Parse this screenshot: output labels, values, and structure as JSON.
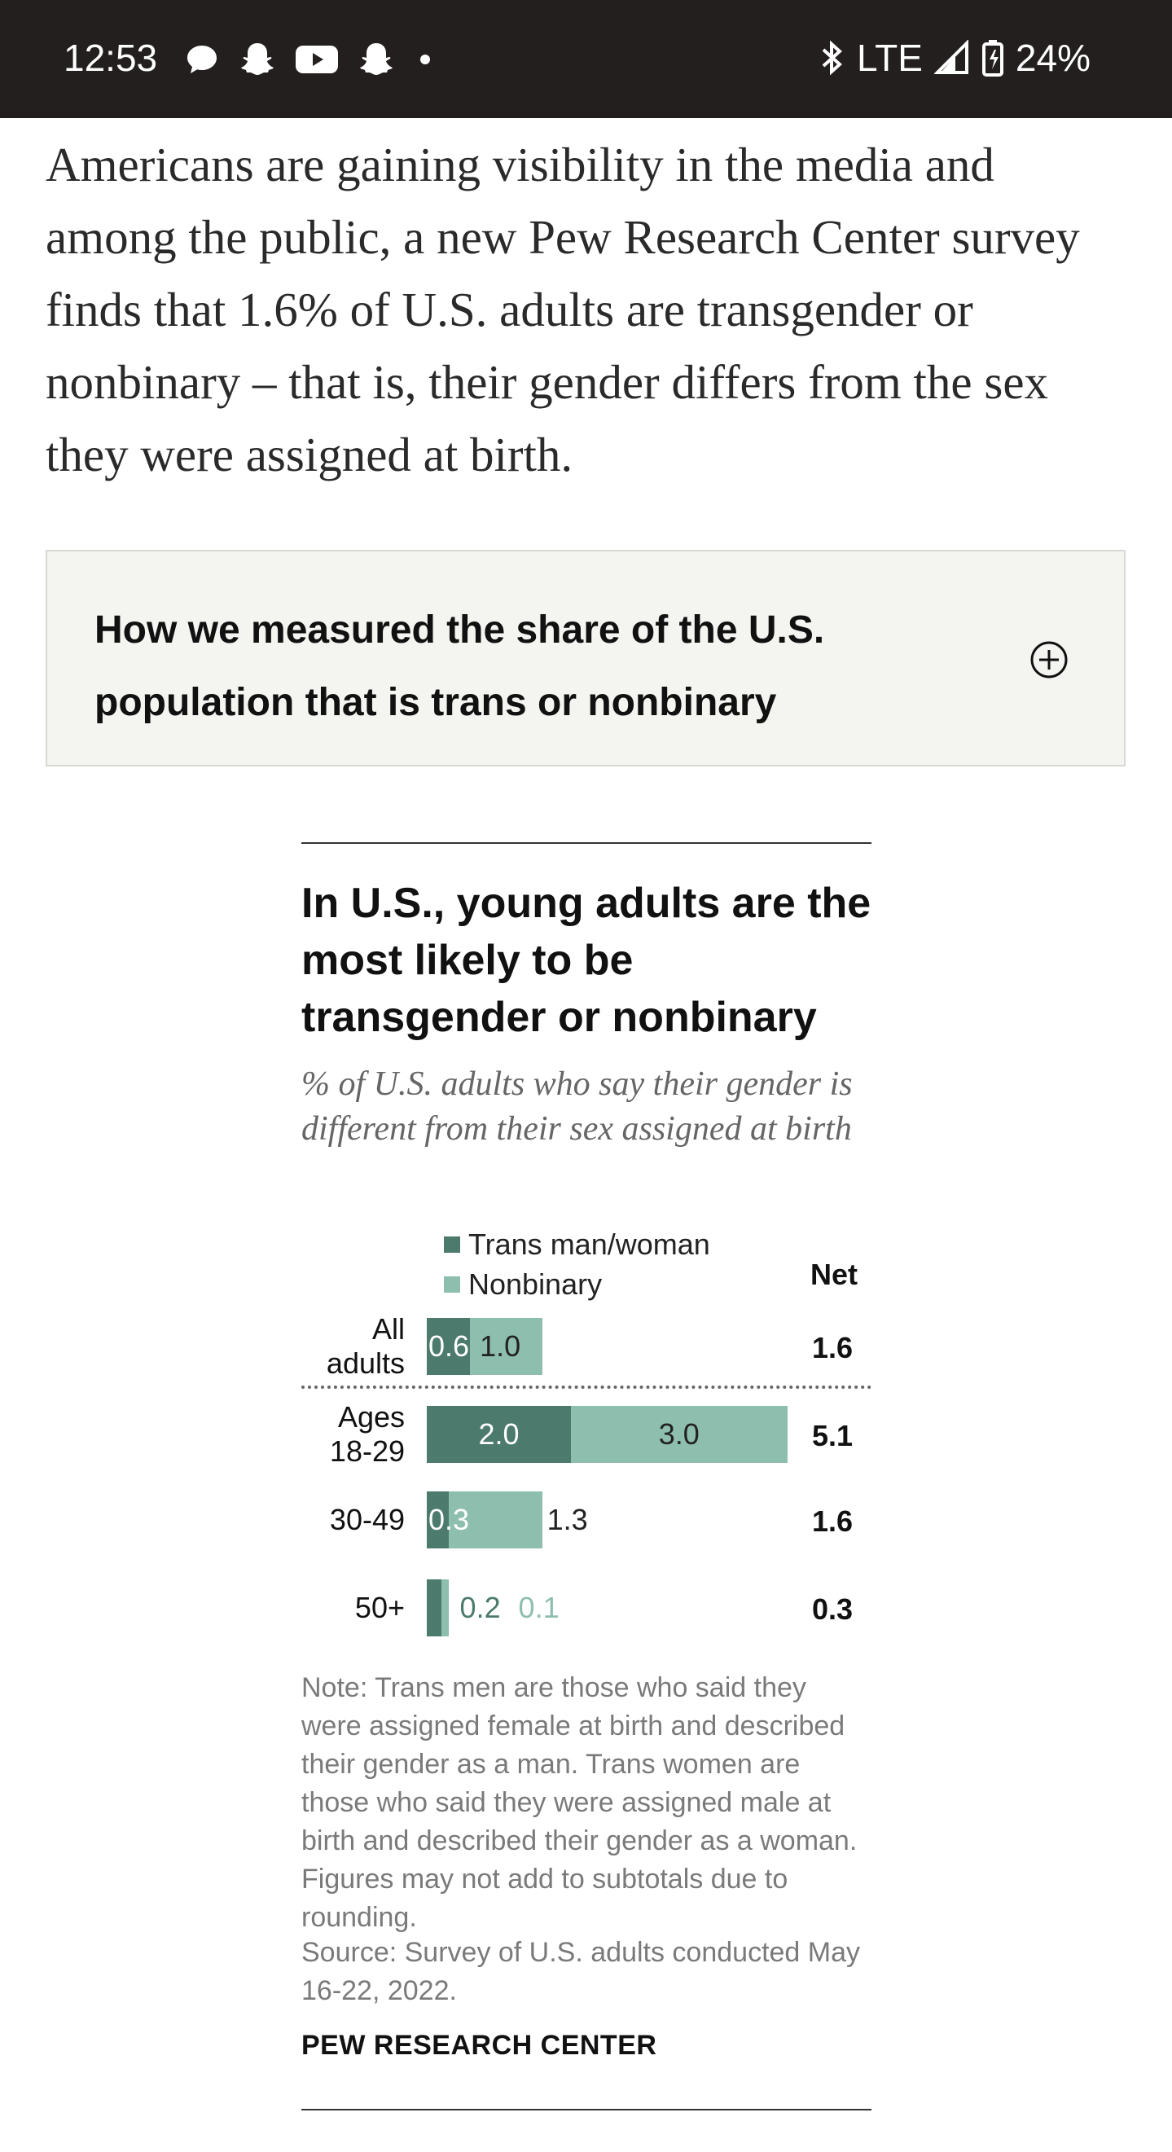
{
  "status_bar": {
    "time": "12:53",
    "network": "LTE",
    "battery": "24%",
    "icons": [
      "chat-bubble-icon",
      "snapchat-icon",
      "youtube-icon",
      "snapchat-icon",
      "dot-icon",
      "bluetooth-icon",
      "signal-icon",
      "battery-icon"
    ]
  },
  "article": {
    "paragraph": "Americans are gaining visibility in the media and among the public, a new Pew Research Center survey finds that 1.6% of U.S. adults are transgender or nonbinary – that is, their gender differs from the sex they were assigned at birth."
  },
  "method_box": {
    "title": "How we measured the share of the U.S. population that is trans or nonbinary",
    "icon": "plus-circle-icon"
  },
  "chart": {
    "title": "In U.S., young adults are the most likely to be transgender or nonbinary",
    "subtitle": "% of U.S. adults who say their gender is different from their sex assigned at birth",
    "net_header": "Net",
    "note": "Note: Trans men are those who said they were assigned female at birth and described their gender as a man. Trans women are those who said they were assigned male at birth and described their gender as a woman. Figures may not add to subtotals due to rounding.",
    "source": "Source: Survey of U.S. adults conducted May 16-22, 2022.",
    "brand": "PEW RESEARCH CENTER"
  },
  "chart_data": {
    "type": "bar",
    "orientation": "horizontal",
    "stacked": true,
    "categories": [
      "All adults",
      "Ages 18-29",
      "30-49",
      "50+"
    ],
    "category_lines": [
      [
        "All",
        "adults"
      ],
      [
        "Ages",
        "18-29"
      ],
      [
        "30-49"
      ],
      [
        "50+"
      ]
    ],
    "series": [
      {
        "name": "Trans man/woman",
        "color": "#4c7a6c",
        "values": [
          0.6,
          2.0,
          0.3,
          0.2
        ],
        "labels": [
          "0.6",
          "2.0",
          "0.3",
          "0.2"
        ]
      },
      {
        "name": "Nonbinary",
        "color": "#8ebfae",
        "values": [
          1.0,
          3.0,
          1.3,
          0.1
        ],
        "labels": [
          "1.0",
          "3.0",
          "1.3",
          "0.1"
        ]
      }
    ],
    "net": [
      "1.6",
      "5.1",
      "1.6",
      "0.3"
    ],
    "legend_position": "top"
  }
}
